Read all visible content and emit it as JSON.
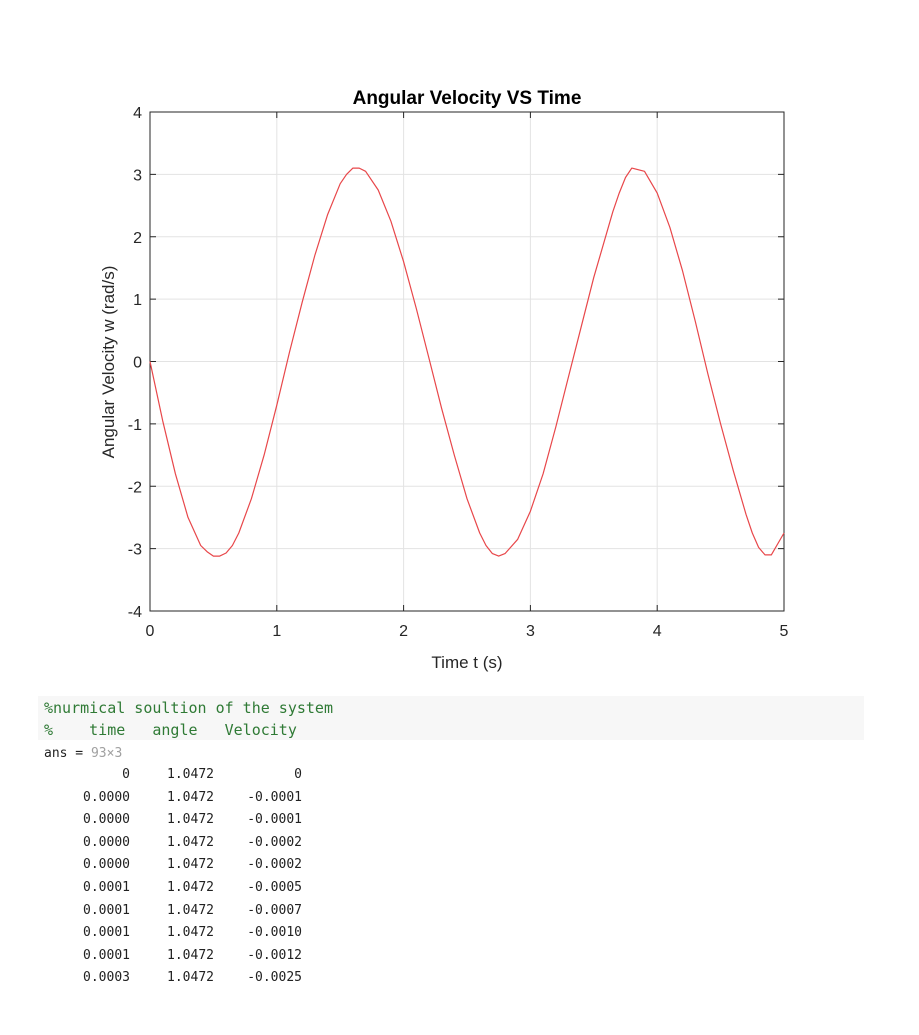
{
  "chart_data": {
    "type": "line",
    "title": "Angular Velocity VS Time",
    "xlabel": "Time t (s)",
    "ylabel": "Angular Velocity w (rad/s)",
    "xlim": [
      0,
      5
    ],
    "ylim": [
      -4,
      4
    ],
    "xticks": [
      0,
      1,
      2,
      3,
      4,
      5
    ],
    "yticks": [
      -4,
      -3,
      -2,
      -1,
      0,
      1,
      2,
      3,
      4
    ],
    "xtick_labels": [
      "0",
      "1",
      "2",
      "3",
      "4",
      "5"
    ],
    "ytick_labels": [
      "-4",
      "-3",
      "-2",
      "-1",
      "0",
      "1",
      "2",
      "3",
      "4"
    ],
    "grid": true,
    "line_color": "#e8474a",
    "series": [
      {
        "x": [
          0,
          0.1,
          0.2,
          0.3,
          0.4,
          0.45,
          0.5,
          0.55,
          0.6,
          0.65,
          0.7,
          0.8,
          0.9,
          1.0,
          1.1,
          1.2,
          1.3,
          1.4,
          1.5,
          1.55,
          1.6,
          1.65,
          1.7,
          1.8,
          1.9,
          2.0,
          2.1,
          2.2,
          2.3,
          2.4,
          2.5,
          2.6,
          2.65,
          2.7,
          2.75,
          2.8,
          2.9,
          3.0,
          3.1,
          3.2,
          3.3,
          3.4,
          3.5,
          3.6,
          3.65,
          3.7,
          3.75,
          3.8,
          3.9,
          4.0,
          4.1,
          4.2,
          4.3,
          4.4,
          4.5,
          4.6,
          4.7,
          4.75,
          4.8,
          4.85,
          4.9,
          5.0
        ],
        "y": [
          0,
          -0.95,
          -1.8,
          -2.5,
          -2.95,
          -3.05,
          -3.12,
          -3.12,
          -3.07,
          -2.95,
          -2.75,
          -2.2,
          -1.5,
          -0.7,
          0.15,
          0.95,
          1.7,
          2.35,
          2.85,
          3.0,
          3.1,
          3.1,
          3.05,
          2.75,
          2.25,
          1.6,
          0.85,
          0.05,
          -0.75,
          -1.5,
          -2.2,
          -2.75,
          -2.95,
          -3.08,
          -3.12,
          -3.08,
          -2.85,
          -2.4,
          -1.8,
          -1.05,
          -0.25,
          0.55,
          1.35,
          2.05,
          2.4,
          2.7,
          2.95,
          3.1,
          3.05,
          2.7,
          2.15,
          1.45,
          0.65,
          -0.2,
          -1.0,
          -1.75,
          -2.45,
          -2.75,
          -2.98,
          -3.1,
          -3.1,
          -2.75
        ]
      }
    ]
  },
  "code": {
    "comment_line_1": "%nurmical soultion of the system",
    "comment_line_2": "%    time   angle   Velocity"
  },
  "output": {
    "ans_label": "ans = ",
    "ans_size": "93×3",
    "rows": [
      [
        "0",
        "1.0472",
        "0"
      ],
      [
        "0.0000",
        "1.0472",
        "-0.0001"
      ],
      [
        "0.0000",
        "1.0472",
        "-0.0001"
      ],
      [
        "0.0000",
        "1.0472",
        "-0.0002"
      ],
      [
        "0.0000",
        "1.0472",
        "-0.0002"
      ],
      [
        "0.0001",
        "1.0472",
        "-0.0005"
      ],
      [
        "0.0001",
        "1.0472",
        "-0.0007"
      ],
      [
        "0.0001",
        "1.0472",
        "-0.0010"
      ],
      [
        "0.0001",
        "1.0472",
        "-0.0012"
      ],
      [
        "0.0003",
        "1.0472",
        "-0.0025"
      ]
    ]
  }
}
